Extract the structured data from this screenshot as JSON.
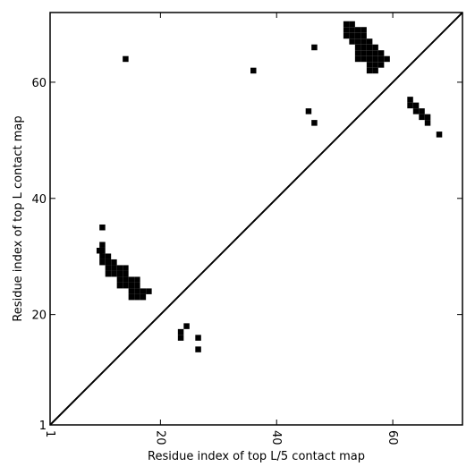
{
  "chart_data": {
    "type": "heatmap",
    "title": "",
    "xlabel": "Residue index of top L/5 contact map",
    "ylabel": "Residue index of top L contact map",
    "xlim": [
      1,
      72
    ],
    "ylim": [
      1,
      72
    ],
    "x_ticks": [
      1,
      20,
      40,
      60
    ],
    "y_ticks": [
      1,
      20,
      40,
      60
    ],
    "x_tick_labels": [
      "1",
      "20",
      "40",
      "60"
    ],
    "y_tick_labels": [
      "1",
      "20",
      "40",
      "60"
    ],
    "diagonal_line": true,
    "cell_color": "#000000",
    "background": "#ffffff",
    "contacts_lower_triangle": [
      [
        9.5,
        31
      ],
      [
        10,
        31
      ],
      [
        10,
        32
      ],
      [
        10,
        35
      ],
      [
        10,
        29
      ],
      [
        10,
        30
      ],
      [
        11,
        29
      ],
      [
        11,
        30
      ],
      [
        11,
        28
      ],
      [
        11,
        27
      ],
      [
        12,
        27
      ],
      [
        12,
        28
      ],
      [
        12,
        29
      ],
      [
        13,
        25
      ],
      [
        13,
        26
      ],
      [
        13,
        27
      ],
      [
        13,
        28
      ],
      [
        14,
        25
      ],
      [
        14,
        26
      ],
      [
        14,
        27
      ],
      [
        14,
        28
      ],
      [
        15,
        23
      ],
      [
        15,
        24
      ],
      [
        15,
        25
      ],
      [
        15,
        26
      ],
      [
        16,
        23
      ],
      [
        16,
        24
      ],
      [
        16,
        25
      ],
      [
        16,
        26
      ],
      [
        17,
        23
      ],
      [
        17,
        24
      ],
      [
        18,
        24
      ],
      [
        23.5,
        16
      ],
      [
        23.5,
        17
      ],
      [
        24.5,
        18
      ],
      [
        26.5,
        14
      ],
      [
        26.5,
        16
      ]
    ],
    "contacts_upper_triangle": [
      [
        14,
        64
      ],
      [
        36,
        62
      ],
      [
        45.5,
        55
      ],
      [
        46.5,
        53
      ],
      [
        46.5,
        66
      ],
      [
        52,
        68
      ],
      [
        52,
        69
      ],
      [
        52,
        70
      ],
      [
        53,
        68
      ],
      [
        53,
        69
      ],
      [
        53,
        70
      ],
      [
        53,
        67
      ],
      [
        54,
        64
      ],
      [
        54,
        65
      ],
      [
        54,
        66
      ],
      [
        54,
        67
      ],
      [
        54,
        68
      ],
      [
        54,
        69
      ],
      [
        55,
        64
      ],
      [
        55,
        65
      ],
      [
        55,
        66
      ],
      [
        55,
        67
      ],
      [
        55,
        68
      ],
      [
        55,
        69
      ],
      [
        56,
        62
      ],
      [
        56,
        63
      ],
      [
        56,
        64
      ],
      [
        56,
        65
      ],
      [
        56,
        66
      ],
      [
        56,
        67
      ],
      [
        57,
        62
      ],
      [
        57,
        63
      ],
      [
        57,
        64
      ],
      [
        57,
        65
      ],
      [
        57,
        66
      ],
      [
        58,
        63
      ],
      [
        58,
        64
      ],
      [
        58,
        65
      ],
      [
        59,
        64
      ],
      [
        63,
        56
      ],
      [
        63,
        57
      ],
      [
        64,
        55
      ],
      [
        64,
        56
      ],
      [
        65,
        54
      ],
      [
        65,
        55
      ],
      [
        66,
        53
      ],
      [
        66,
        54
      ],
      [
        68,
        51
      ]
    ]
  }
}
